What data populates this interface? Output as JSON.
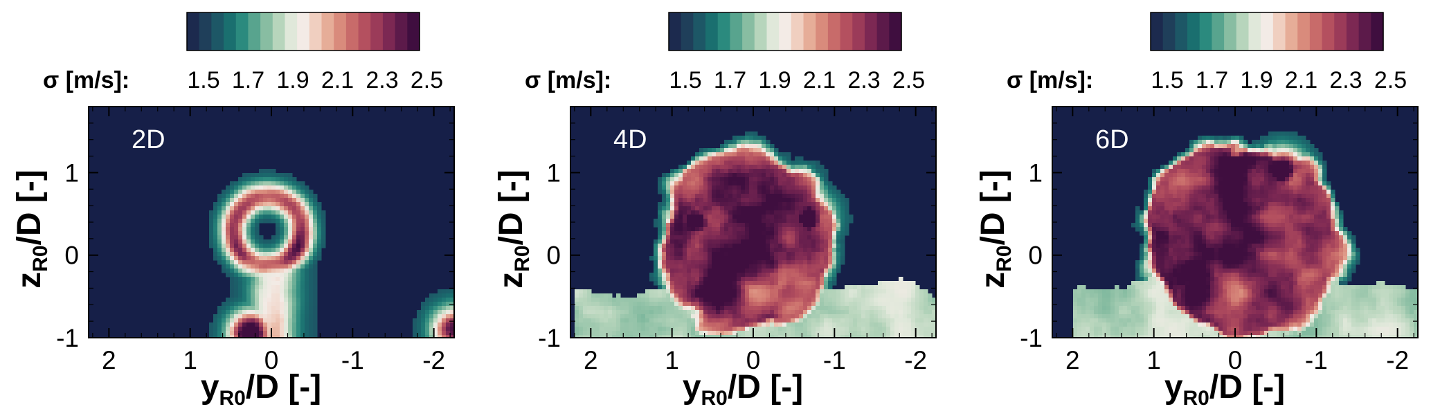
{
  "colorbar": {
    "title": "σ [m/s]:",
    "tick_labels": [
      "1.5",
      "1.7",
      "1.9",
      "2.1",
      "2.3",
      "2.5"
    ],
    "colors": [
      "#1c2a4e",
      "#1f3f5a",
      "#1d5766",
      "#1a6f6f",
      "#2b8a7e",
      "#58a48e",
      "#88bda2",
      "#b7d5bc",
      "#e0e8da",
      "#f3ebe6",
      "#f0cfc0",
      "#e6ad98",
      "#d98b7c",
      "#c86b6a",
      "#b4505f",
      "#9b3b59",
      "#7c2853",
      "#5c1a4a",
      "#3f0e3f"
    ]
  },
  "axes": {
    "x_title": "y",
    "x_title_sub": "R0",
    "x_title_rest": "/D [-]",
    "y_title": "z",
    "y_title_sub": "R0",
    "y_title_rest": "/D [-]",
    "x_tick_labels": [
      "2",
      "1",
      "0",
      "-1",
      "-2"
    ],
    "y_tick_labels": [
      "1",
      "0",
      "-1"
    ],
    "xlim": [
      2.25,
      -2.25
    ],
    "ylim": [
      -1.0,
      1.8
    ],
    "background_color": "#161f48"
  },
  "chart_data": [
    {
      "type": "heatmap",
      "panel_label": "2D",
      "x_ticks": [
        2,
        1,
        0,
        -1,
        -2
      ],
      "y_ticks": [
        1,
        0,
        -1
      ],
      "xlim": [
        2.25,
        -2.25
      ],
      "ylim": [
        -1.0,
        1.8
      ],
      "clim": [
        1.5,
        2.5
      ],
      "colorbar_title": "σ [m/s]:",
      "features": [
        {
          "shape": "ring",
          "center_y": 0.05,
          "center_z": 0.3,
          "radius": 0.42,
          "sigma": 2.15
        },
        {
          "shape": "stem",
          "y_range": [
            0.3,
            -0.35
          ],
          "z_range": [
            -1.0,
            -0.1
          ],
          "sigma": 2.0
        },
        {
          "shape": "blob",
          "y": 0.25,
          "z": -0.95,
          "sigma": 2.45
        },
        {
          "shape": "blob",
          "y": -2.25,
          "z": -0.9,
          "sigma": 2.2
        }
      ]
    },
    {
      "type": "heatmap",
      "panel_label": "4D",
      "x_ticks": [
        2,
        1,
        0,
        -1,
        -2
      ],
      "y_ticks": [
        1,
        0,
        -1
      ],
      "xlim": [
        2.25,
        -2.25
      ],
      "ylim": [
        -1.0,
        1.8
      ],
      "clim": [
        1.5,
        2.5
      ],
      "colorbar_title": "σ [m/s]:",
      "features": [
        {
          "shape": "cloud",
          "center_y": 0.1,
          "center_z": 0.15,
          "radius": 0.95,
          "sigma": 2.2
        },
        {
          "shape": "blob",
          "y": 0.7,
          "z": 0.4,
          "sigma": 2.5
        },
        {
          "shape": "blob",
          "y": -0.7,
          "z": 0.45,
          "sigma": 2.5
        },
        {
          "shape": "band",
          "y_range": [
            2.2,
            -2.25
          ],
          "z_range": [
            -1.0,
            -0.4
          ],
          "sigma": 1.8
        }
      ]
    },
    {
      "type": "heatmap",
      "panel_label": "6D",
      "x_ticks": [
        2,
        1,
        0,
        -1,
        -2
      ],
      "y_ticks": [
        1,
        0,
        -1
      ],
      "xlim": [
        2.25,
        -2.25
      ],
      "ylim": [
        -1.0,
        1.8
      ],
      "clim": [
        1.5,
        2.5
      ],
      "colorbar_title": "σ [m/s]:",
      "features": [
        {
          "shape": "cloud",
          "center_y": -0.05,
          "center_z": 0.2,
          "radius": 1.1,
          "sigma": 2.2
        },
        {
          "shape": "blob",
          "y": -0.6,
          "z": 1.0,
          "sigma": 2.5
        },
        {
          "shape": "band",
          "y_range": [
            2.0,
            -2.25
          ],
          "z_range": [
            -1.0,
            -0.3
          ],
          "sigma": 1.8
        }
      ]
    }
  ]
}
